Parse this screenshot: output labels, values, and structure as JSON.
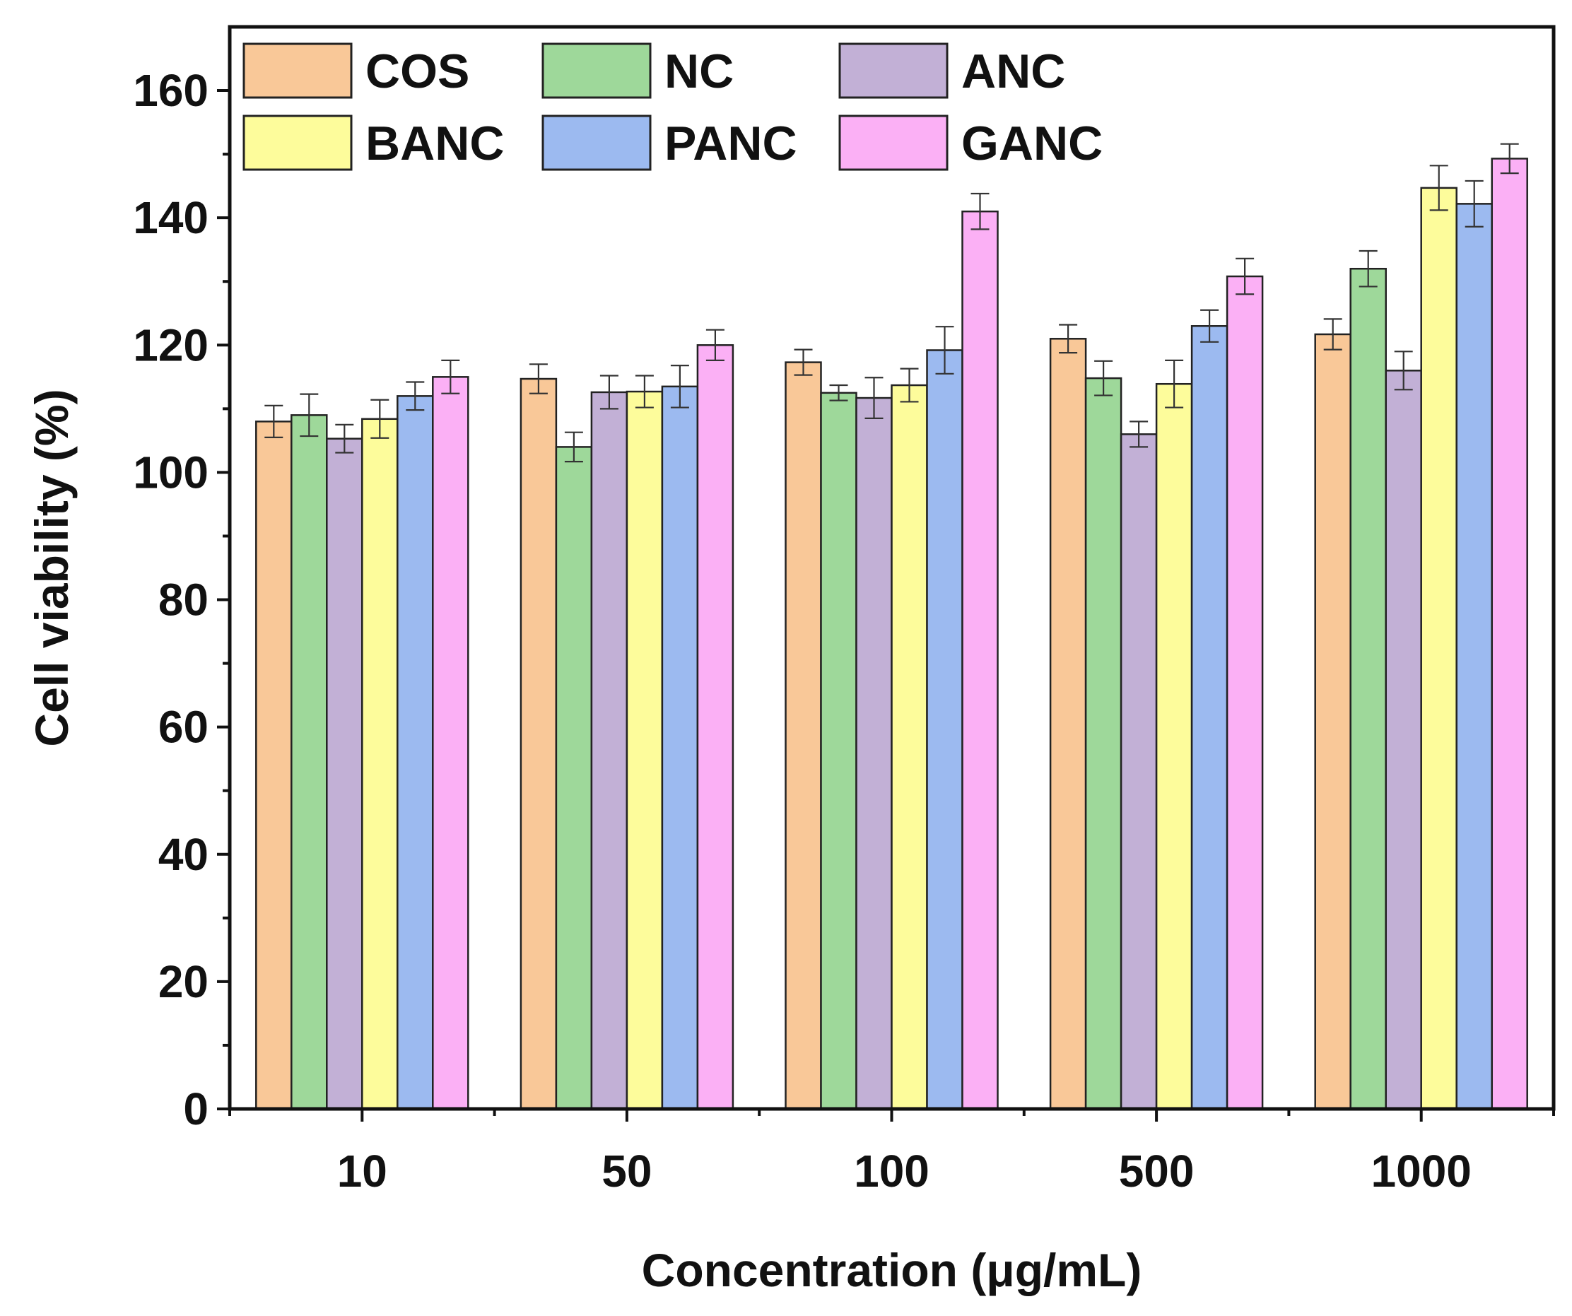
{
  "chart_data": {
    "type": "bar",
    "xlabel": "Concentration (μg/mL)",
    "ylabel": "Cell viability (%)",
    "ylim": [
      0,
      170
    ],
    "yticks": [
      "0",
      "20",
      "40",
      "60",
      "80",
      "100",
      "120",
      "140",
      "160"
    ],
    "categories": [
      "10",
      "50",
      "100",
      "500",
      "1000"
    ],
    "legend": {
      "placement": "top-left",
      "columns": 3
    },
    "grid": false,
    "series": [
      {
        "name": "COS",
        "color": "#F9C898",
        "values": [
          108,
          114.7,
          117.3,
          121,
          121.7
        ],
        "errors": [
          2.5,
          2.3,
          2.0,
          2.2,
          2.4
        ]
      },
      {
        "name": "NC",
        "color": "#9ED89A",
        "values": [
          109,
          104,
          112.5,
          114.8,
          132
        ],
        "errors": [
          3.3,
          2.3,
          1.2,
          2.7,
          2.8
        ]
      },
      {
        "name": "ANC",
        "color": "#C2B0D6",
        "values": [
          105.3,
          112.6,
          111.7,
          106,
          116
        ],
        "errors": [
          2.2,
          2.6,
          3.2,
          2.0,
          3.0
        ]
      },
      {
        "name": "BANC",
        "color": "#FDFC9B",
        "values": [
          108.4,
          112.7,
          113.7,
          113.9,
          144.7
        ],
        "errors": [
          3.0,
          2.5,
          2.6,
          3.7,
          3.5
        ]
      },
      {
        "name": "PANC",
        "color": "#9CBAF0",
        "values": [
          112,
          113.5,
          119.2,
          123,
          142.2
        ],
        "errors": [
          2.2,
          3.3,
          3.7,
          2.5,
          3.6
        ]
      },
      {
        "name": "GANC",
        "color": "#FBB0F5",
        "values": [
          115,
          120,
          141,
          130.8,
          149.3
        ],
        "errors": [
          2.6,
          2.4,
          2.8,
          2.8,
          2.3
        ]
      }
    ]
  }
}
